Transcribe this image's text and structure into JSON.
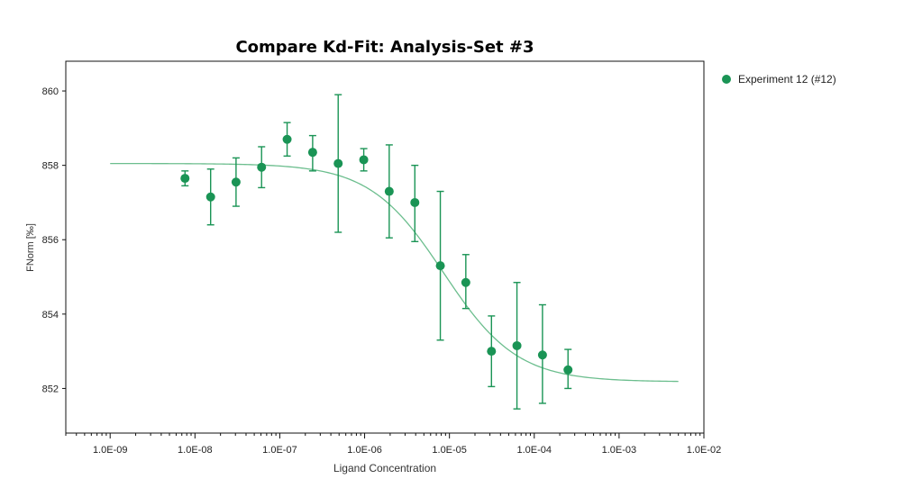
{
  "chart_data": {
    "type": "scatter",
    "title": "Compare Kd-Fit: Analysis-Set #3",
    "xlabel": "Ligand Concentration",
    "ylabel": "FNorm [‰]",
    "x_scale": "log",
    "xlim": [
      3e-10,
      0.01
    ],
    "ylim": [
      850.8,
      860.8
    ],
    "x_ticks": [
      1e-09,
      1e-08,
      1e-07,
      1e-06,
      1e-05,
      0.0001,
      0.001,
      0.01
    ],
    "x_tick_labels": [
      "1.0E-09",
      "1.0E-08",
      "1.0E-07",
      "1.0E-06",
      "1.0E-05",
      "1.0E-04",
      "1.0E-03",
      "1.0E-02"
    ],
    "y_ticks": [
      852,
      854,
      856,
      858,
      860
    ],
    "y_tick_labels": [
      "852",
      "854",
      "856",
      "858",
      "860"
    ],
    "grid": false,
    "legend_position": "right",
    "colors": {
      "series": "#1a9455",
      "fit": "#6cbe8e"
    },
    "series": [
      {
        "name": "Experiment 12 (#12)",
        "points": [
          {
            "x": 7.63e-09,
            "y": 857.65,
            "err_low": 857.45,
            "err_high": 857.85
          },
          {
            "x": 1.53e-08,
            "y": 857.15,
            "err_low": 856.4,
            "err_high": 857.9
          },
          {
            "x": 3.05e-08,
            "y": 857.55,
            "err_low": 856.9,
            "err_high": 858.2
          },
          {
            "x": 6.1e-08,
            "y": 857.95,
            "err_low": 857.4,
            "err_high": 858.5
          },
          {
            "x": 1.22e-07,
            "y": 858.7,
            "err_low": 858.25,
            "err_high": 859.15
          },
          {
            "x": 2.44e-07,
            "y": 858.35,
            "err_low": 857.85,
            "err_high": 858.8
          },
          {
            "x": 4.88e-07,
            "y": 858.05,
            "err_low": 856.2,
            "err_high": 859.9
          },
          {
            "x": 9.77e-07,
            "y": 858.15,
            "err_low": 857.85,
            "err_high": 858.45
          },
          {
            "x": 1.95e-06,
            "y": 857.3,
            "err_low": 856.05,
            "err_high": 858.55
          },
          {
            "x": 3.91e-06,
            "y": 857.0,
            "err_low": 855.95,
            "err_high": 858.0
          },
          {
            "x": 7.81e-06,
            "y": 855.3,
            "err_low": 853.3,
            "err_high": 857.3
          },
          {
            "x": 1.56e-05,
            "y": 854.85,
            "err_low": 854.15,
            "err_high": 855.6
          },
          {
            "x": 3.13e-05,
            "y": 853.0,
            "err_low": 852.05,
            "err_high": 853.95
          },
          {
            "x": 6.25e-05,
            "y": 853.15,
            "err_low": 851.45,
            "err_high": 854.85
          },
          {
            "x": 0.000125,
            "y": 852.9,
            "err_low": 851.6,
            "err_high": 854.25
          },
          {
            "x": 0.00025,
            "y": 852.5,
            "err_low": 852.0,
            "err_high": 853.05
          }
        ]
      }
    ],
    "fit_curve": {
      "type": "sigmoid",
      "bottom": 852.18,
      "top": 858.05,
      "ec50": 8.5e-06,
      "hill": 1.0,
      "x_range": [
        1e-09,
        0.005
      ]
    }
  }
}
